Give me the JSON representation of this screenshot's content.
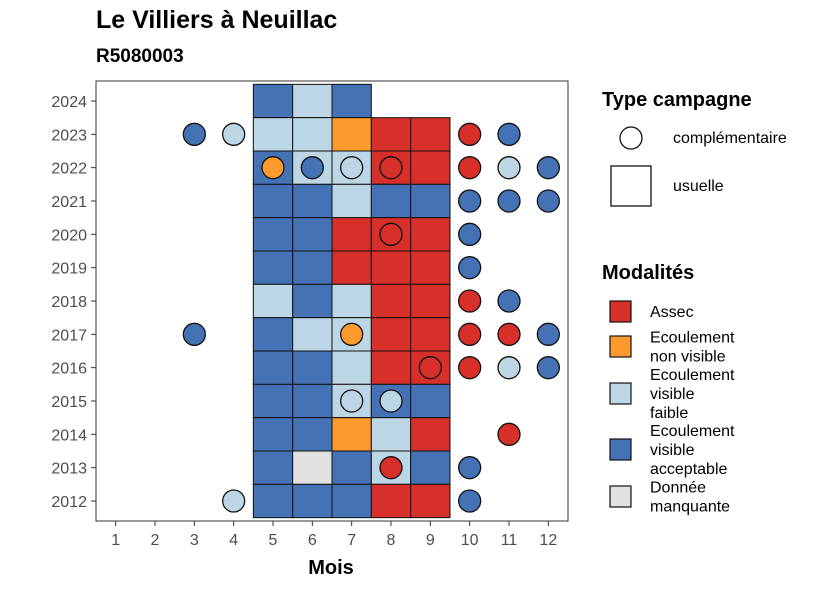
{
  "chart_data": {
    "type": "heatmap",
    "title": "Le Villiers à Neuillac",
    "subtitle": "R5080003",
    "xlabel": "Mois",
    "ylabel": "",
    "x_ticks": [
      1,
      2,
      3,
      4,
      5,
      6,
      7,
      8,
      9,
      10,
      11,
      12
    ],
    "y_ticks": [
      2012,
      2013,
      2014,
      2015,
      2016,
      2017,
      2018,
      2019,
      2020,
      2021,
      2022,
      2023,
      2024
    ],
    "xlim": [
      0.5,
      12.5
    ],
    "ylim": [
      2011.4,
      2024.6
    ],
    "grid": false,
    "legend_position": "right",
    "colors": {
      "Assec": "#d7302a",
      "Ecoulement non visible": "#fd9a2d",
      "Ecoulement visible faible": "#bcd6e6",
      "Ecoulement visible acceptable": "#4472b4",
      "Donnée manquante": "#e2e2e2"
    },
    "legend_type": {
      "title": "Type campagne",
      "items": [
        {
          "label": "complémentaire",
          "shape": "circle"
        },
        {
          "label": "usuelle",
          "shape": "square"
        }
      ]
    },
    "legend_modalites": {
      "title": "Modalités",
      "items": [
        {
          "key": "Assec",
          "lines": [
            "Assec"
          ]
        },
        {
          "key": "Ecoulement non visible",
          "lines": [
            "Ecoulement",
            "non visible"
          ]
        },
        {
          "key": "Ecoulement visible faible",
          "lines": [
            "Ecoulement",
            "visible",
            "faible"
          ]
        },
        {
          "key": "Ecoulement visible acceptable",
          "lines": [
            "Ecoulement",
            "visible",
            "acceptable"
          ]
        },
        {
          "key": "Donnée manquante",
          "lines": [
            "Donnée",
            "manquante"
          ]
        }
      ]
    },
    "usuelle": [
      [
        2024,
        5,
        "Ecoulement visible acceptable"
      ],
      [
        2024,
        6,
        "Ecoulement visible faible"
      ],
      [
        2024,
        7,
        "Ecoulement visible acceptable"
      ],
      [
        2023,
        5,
        "Ecoulement visible faible"
      ],
      [
        2023,
        6,
        "Ecoulement visible faible"
      ],
      [
        2023,
        7,
        "Ecoulement non visible"
      ],
      [
        2023,
        8,
        "Assec"
      ],
      [
        2023,
        9,
        "Assec"
      ],
      [
        2022,
        5,
        "Ecoulement visible acceptable"
      ],
      [
        2022,
        6,
        "Ecoulement visible faible"
      ],
      [
        2022,
        7,
        "Ecoulement visible faible"
      ],
      [
        2022,
        8,
        "Assec"
      ],
      [
        2022,
        9,
        "Assec"
      ],
      [
        2021,
        5,
        "Ecoulement visible acceptable"
      ],
      [
        2021,
        6,
        "Ecoulement visible acceptable"
      ],
      [
        2021,
        7,
        "Ecoulement visible faible"
      ],
      [
        2021,
        8,
        "Ecoulement visible acceptable"
      ],
      [
        2021,
        9,
        "Ecoulement visible acceptable"
      ],
      [
        2020,
        5,
        "Ecoulement visible acceptable"
      ],
      [
        2020,
        6,
        "Ecoulement visible acceptable"
      ],
      [
        2020,
        7,
        "Assec"
      ],
      [
        2020,
        8,
        "Assec"
      ],
      [
        2020,
        9,
        "Assec"
      ],
      [
        2019,
        5,
        "Ecoulement visible acceptable"
      ],
      [
        2019,
        6,
        "Ecoulement visible acceptable"
      ],
      [
        2019,
        7,
        "Assec"
      ],
      [
        2019,
        8,
        "Assec"
      ],
      [
        2019,
        9,
        "Assec"
      ],
      [
        2018,
        5,
        "Ecoulement visible faible"
      ],
      [
        2018,
        6,
        "Ecoulement visible acceptable"
      ],
      [
        2018,
        7,
        "Ecoulement visible faible"
      ],
      [
        2018,
        8,
        "Assec"
      ],
      [
        2018,
        9,
        "Assec"
      ],
      [
        2017,
        5,
        "Ecoulement visible acceptable"
      ],
      [
        2017,
        6,
        "Ecoulement visible faible"
      ],
      [
        2017,
        7,
        "Ecoulement visible faible"
      ],
      [
        2017,
        8,
        "Assec"
      ],
      [
        2017,
        9,
        "Assec"
      ],
      [
        2016,
        5,
        "Ecoulement visible acceptable"
      ],
      [
        2016,
        6,
        "Ecoulement visible acceptable"
      ],
      [
        2016,
        7,
        "Ecoulement visible faible"
      ],
      [
        2016,
        8,
        "Assec"
      ],
      [
        2016,
        9,
        "Assec"
      ],
      [
        2015,
        5,
        "Ecoulement visible acceptable"
      ],
      [
        2015,
        6,
        "Ecoulement visible acceptable"
      ],
      [
        2015,
        7,
        "Ecoulement visible faible"
      ],
      [
        2015,
        8,
        "Ecoulement visible acceptable"
      ],
      [
        2015,
        9,
        "Ecoulement visible acceptable"
      ],
      [
        2014,
        5,
        "Ecoulement visible acceptable"
      ],
      [
        2014,
        6,
        "Ecoulement visible acceptable"
      ],
      [
        2014,
        7,
        "Ecoulement non visible"
      ],
      [
        2014,
        8,
        "Ecoulement visible faible"
      ],
      [
        2014,
        9,
        "Assec"
      ],
      [
        2013,
        5,
        "Ecoulement visible acceptable"
      ],
      [
        2013,
        6,
        "Donnée manquante"
      ],
      [
        2013,
        7,
        "Ecoulement visible acceptable"
      ],
      [
        2013,
        8,
        "Ecoulement visible faible"
      ],
      [
        2013,
        9,
        "Ecoulement visible acceptable"
      ],
      [
        2012,
        5,
        "Ecoulement visible acceptable"
      ],
      [
        2012,
        6,
        "Ecoulement visible acceptable"
      ],
      [
        2012,
        7,
        "Ecoulement visible acceptable"
      ],
      [
        2012,
        8,
        "Assec"
      ],
      [
        2012,
        9,
        "Assec"
      ]
    ],
    "complementaire": [
      [
        2023,
        3,
        "Ecoulement visible acceptable"
      ],
      [
        2023,
        4,
        "Ecoulement visible faible"
      ],
      [
        2023,
        10,
        "Assec"
      ],
      [
        2023,
        11,
        "Ecoulement visible acceptable"
      ],
      [
        2022,
        5,
        "Ecoulement non visible"
      ],
      [
        2022,
        6,
        "Ecoulement visible acceptable"
      ],
      [
        2022,
        7,
        "Ecoulement visible faible"
      ],
      [
        2022,
        8,
        "Assec"
      ],
      [
        2022,
        10,
        "Assec"
      ],
      [
        2022,
        11,
        "Ecoulement visible faible"
      ],
      [
        2022,
        12,
        "Ecoulement visible acceptable"
      ],
      [
        2021,
        10,
        "Ecoulement visible acceptable"
      ],
      [
        2021,
        11,
        "Ecoulement visible acceptable"
      ],
      [
        2021,
        12,
        "Ecoulement visible acceptable"
      ],
      [
        2020,
        8,
        "Assec"
      ],
      [
        2020,
        10,
        "Ecoulement visible acceptable"
      ],
      [
        2019,
        10,
        "Ecoulement visible acceptable"
      ],
      [
        2018,
        10,
        "Assec"
      ],
      [
        2018,
        11,
        "Ecoulement visible acceptable"
      ],
      [
        2017,
        3,
        "Ecoulement visible acceptable"
      ],
      [
        2017,
        7,
        "Ecoulement non visible"
      ],
      [
        2017,
        10,
        "Assec"
      ],
      [
        2017,
        11,
        "Assec"
      ],
      [
        2017,
        12,
        "Ecoulement visible acceptable"
      ],
      [
        2016,
        9,
        "Assec"
      ],
      [
        2016,
        10,
        "Assec"
      ],
      [
        2016,
        11,
        "Ecoulement visible faible"
      ],
      [
        2016,
        12,
        "Ecoulement visible acceptable"
      ],
      [
        2015,
        7,
        "Ecoulement visible faible"
      ],
      [
        2015,
        8,
        "Ecoulement visible faible"
      ],
      [
        2014,
        11,
        "Assec"
      ],
      [
        2013,
        8,
        "Assec"
      ],
      [
        2013,
        10,
        "Ecoulement visible acceptable"
      ],
      [
        2012,
        4,
        "Ecoulement visible faible"
      ],
      [
        2012,
        10,
        "Ecoulement visible acceptable"
      ]
    ]
  }
}
